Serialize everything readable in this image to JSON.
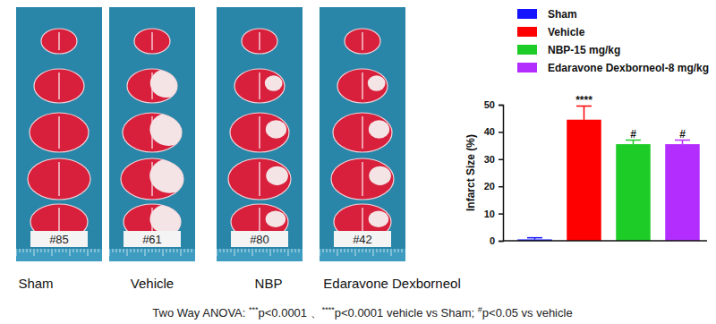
{
  "chart_data": {
    "type": "bar",
    "categories": [
      "Sham",
      "Vehicle",
      "NBP-15 mg/kg",
      "Edaravone Dexborneol-8 mg/kg"
    ],
    "values": [
      0.5,
      44.5,
      35.5,
      35.5
    ],
    "errors": [
      0.6,
      5,
      1.5,
      1.5
    ],
    "colors": [
      "#1414ff",
      "#ff0000",
      "#1ecc28",
      "#b42dff"
    ],
    "y_label": "Infarct Size (%)",
    "ylim": [
      0,
      50
    ],
    "yticks": [
      0,
      10,
      20,
      30,
      40,
      50
    ],
    "legend": "top",
    "tick_labels": "y",
    "annotations": [
      {
        "category": "Vehicle",
        "text": "****"
      },
      {
        "category": "NBP-15 mg/kg",
        "text": "#"
      },
      {
        "category": "Edaravone Dexborneol-8 mg/kg",
        "text": "#"
      }
    ]
  },
  "panels": [
    {
      "label": "Sham",
      "sample": "#85"
    },
    {
      "label": "Vehicle",
      "sample": "#61"
    },
    {
      "label": "NBP",
      "sample": "#80"
    },
    {
      "label": "Edaravone Dexborneol",
      "sample": "#42"
    }
  ],
  "footnote": [
    {
      "text": "Two Way ANOVA: ",
      "superscript": false
    },
    {
      "text": "***",
      "superscript": true
    },
    {
      "text": "p<0.0001 、",
      "superscript": false
    },
    {
      "text": "****",
      "superscript": true
    },
    {
      "text": "p<0.0001 vehicle vs Sham; ",
      "superscript": false
    },
    {
      "text": "#",
      "superscript": true
    },
    {
      "text": "p<0.05 vs vehicle",
      "superscript": false
    }
  ]
}
